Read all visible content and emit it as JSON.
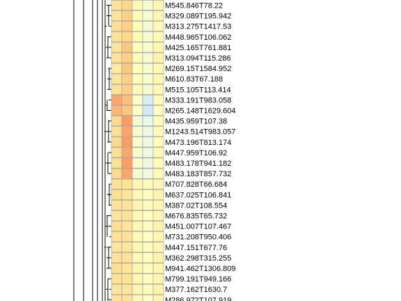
{
  "chart_data": {
    "type": "heatmap",
    "title": "",
    "xlabel": "",
    "ylabel": "",
    "legend": "none",
    "dendrogram": "left",
    "colormap": {
      "low": "#91bfdb",
      "mid_low": "#e0f3f8",
      "mid": "#ffffbf",
      "mid_high": "#fee090",
      "high": "#fc8d59"
    },
    "value_range": [
      -2,
      2
    ],
    "rows": [
      "M545.846T78.22",
      "M329.089T195.942",
      "M313.275T1417.53",
      "M448.965T106.062",
      "M425.165T761.881",
      "M313.094T115.286",
      "M269.15T1584.952",
      "M610.83T67.188",
      "M515.105T113.414",
      "M333.191T983.058",
      "M265.148T1629.604",
      "M435.959T107.38",
      "M1243.514T983.057",
      "M473.196T813.174",
      "M447.959T106.92",
      "M483.178T941.182",
      "M483.183T857.732",
      "M707.828T66.684",
      "M637.025T106.841",
      "M387.02T108.554",
      "M676.835T65.732",
      "M451.007T107.467",
      "M731.208T950.406",
      "M447.151T677.76",
      "M362.298T315.255",
      "M941.462T1306.809",
      "M799.191T949.166",
      "M377.162T1630.7",
      "M286.972T107.919"
    ],
    "values": [
      [
        0.9,
        1.1,
        0.2,
        -0.3,
        0.3
      ],
      [
        0.8,
        1.2,
        0.1,
        -0.2,
        0.3
      ],
      [
        1.0,
        1.2,
        0.1,
        -0.4,
        0.2
      ],
      [
        0.9,
        1.1,
        0.2,
        -0.3,
        0.2
      ],
      [
        0.8,
        1.3,
        0.0,
        -0.2,
        0.3
      ],
      [
        0.9,
        1.2,
        0.1,
        -0.3,
        0.4
      ],
      [
        0.7,
        1.3,
        0.0,
        -0.3,
        0.2
      ],
      [
        0.8,
        1.2,
        0.1,
        -0.2,
        0.3
      ],
      [
        0.9,
        1.2,
        0.2,
        -0.3,
        0.2
      ],
      [
        1.7,
        1.4,
        -0.2,
        -1.1,
        0.1
      ],
      [
        1.5,
        1.3,
        -0.1,
        -1.2,
        0.0
      ],
      [
        1.1,
        1.8,
        -0.4,
        -0.7,
        0.1
      ],
      [
        1.0,
        1.7,
        -0.3,
        -0.6,
        0.2
      ],
      [
        1.1,
        1.8,
        -0.2,
        -0.5,
        0.1
      ],
      [
        1.0,
        1.7,
        -0.3,
        -0.6,
        0.2
      ],
      [
        1.0,
        1.8,
        -0.2,
        -0.5,
        0.1
      ],
      [
        1.1,
        1.7,
        -0.3,
        -0.5,
        0.2
      ],
      [
        0.9,
        0.9,
        0.3,
        0.1,
        0.3
      ],
      [
        1.0,
        0.8,
        0.2,
        0.0,
        0.4
      ],
      [
        0.9,
        0.9,
        0.3,
        0.1,
        0.3
      ],
      [
        0.8,
        0.9,
        0.2,
        0.0,
        0.3
      ],
      [
        1.0,
        0.8,
        0.3,
        0.1,
        0.4
      ],
      [
        0.9,
        0.9,
        0.2,
        0.0,
        0.3
      ],
      [
        0.8,
        0.8,
        0.3,
        0.1,
        0.3
      ],
      [
        0.9,
        0.9,
        0.2,
        0.0,
        0.4
      ],
      [
        1.0,
        0.8,
        0.3,
        0.1,
        0.3
      ],
      [
        0.9,
        0.9,
        0.2,
        0.0,
        0.3
      ],
      [
        0.8,
        0.8,
        0.3,
        0.1,
        0.4
      ],
      [
        0.9,
        0.9,
        0.2,
        0.0,
        0.3
      ]
    ]
  }
}
